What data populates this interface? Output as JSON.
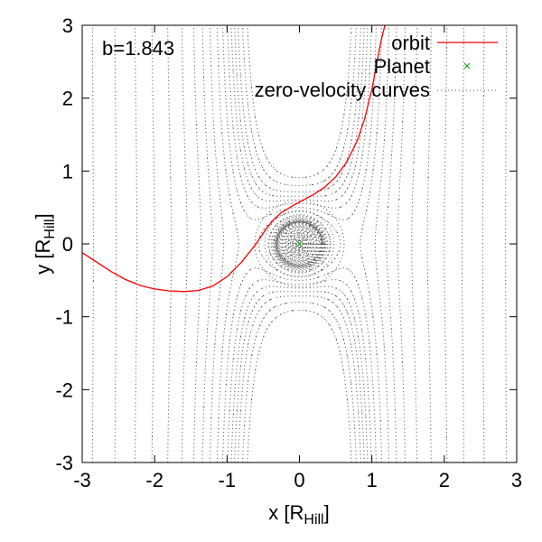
{
  "chart_data": {
    "type": "line",
    "annotation": "b=1.843",
    "xlabel": {
      "main": "x [R",
      "sub": "Hill",
      "close": "]"
    },
    "ylabel": {
      "main": "y [R",
      "sub": "Hill",
      "close": "]"
    },
    "xlim": [
      -3,
      3
    ],
    "ylim": [
      -3,
      3
    ],
    "xticks": [
      -3,
      -2,
      -1,
      0,
      1,
      2,
      3
    ],
    "yticks": [
      -3,
      -2,
      -1,
      0,
      1,
      2,
      3
    ],
    "grid": false,
    "legend_position": "top-right",
    "legend": [
      {
        "label": "orbit",
        "style": "line",
        "color": "#ff0000"
      },
      {
        "label": "Planet",
        "style": "x-marker",
        "color": "#009900"
      },
      {
        "label": "zero-velocity curves",
        "style": "dotted",
        "color": "#555555"
      }
    ],
    "series": [
      {
        "name": "orbit",
        "color": "#ff0000",
        "x": [
          -3.0,
          -2.8,
          -2.6,
          -2.4,
          -2.2,
          -2.0,
          -1.8,
          -1.6,
          -1.4,
          -1.2,
          -1.0,
          -0.8,
          -0.6,
          -0.45,
          -0.35,
          -0.25,
          -0.1,
          0.05,
          0.2,
          0.35,
          0.5,
          0.65,
          0.8,
          0.9,
          1.0,
          1.07,
          1.13,
          1.18
        ],
        "y": [
          -0.12,
          -0.25,
          -0.38,
          -0.49,
          -0.57,
          -0.62,
          -0.645,
          -0.655,
          -0.64,
          -0.58,
          -0.45,
          -0.25,
          0.0,
          0.22,
          0.34,
          0.43,
          0.52,
          0.6,
          0.68,
          0.78,
          0.92,
          1.12,
          1.42,
          1.72,
          2.12,
          2.5,
          2.8,
          3.0
        ]
      },
      {
        "name": "Planet",
        "color": "#009900",
        "x": [
          0.0
        ],
        "y": [
          0.0
        ]
      }
    ],
    "zero_velocity_curves": {
      "color": "#555555",
      "style": "dotted",
      "jacobi_levels": [
        2.2,
        2.5,
        2.8,
        3.05,
        3.3,
        3.6,
        4.0,
        4.5,
        5.2,
        6.0,
        7.0,
        8.5,
        10.5,
        13.0,
        16.0,
        20.0,
        25.0,
        31.0,
        38.0,
        46.0,
        55.0,
        65.0
      ],
      "inner_levels": [
        -2.0,
        -0.8,
        0.2,
        0.8,
        1.2,
        1.45,
        1.7,
        1.9,
        2.05,
        2.18,
        2.27,
        2.34,
        2.4,
        2.45,
        2.49,
        2.55,
        2.7,
        2.9,
        3.2,
        3.5,
        3.9,
        4.4,
        5.0,
        5.8,
        6.8,
        8.0,
        10.0,
        12.5,
        15.5,
        19.0
      ]
    }
  }
}
